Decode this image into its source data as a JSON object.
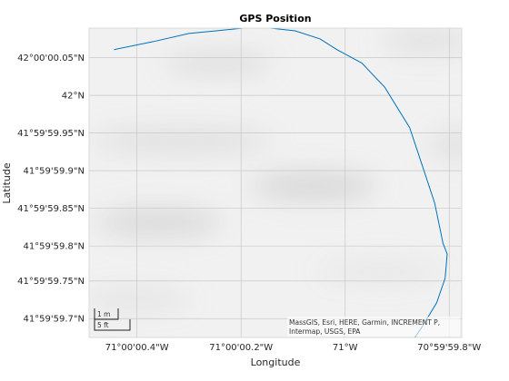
{
  "chart_data": {
    "type": "line",
    "title": "GPS Position",
    "xlabel": "Longitude",
    "ylabel": "Latitude",
    "xlim": [
      -71.000123,
      -70.999944
    ],
    "ylim": [
      41.99991,
      42.000025
    ],
    "x_ticks": [
      {
        "value": -71.0001,
        "label": "71°00'00.4\"W"
      },
      {
        "value": -71.00005,
        "label": "71°00'00.2\"W"
      },
      {
        "value": -71.0,
        "label": "71°W"
      },
      {
        "value": -70.99995,
        "label": "70°59'59.8\"W"
      }
    ],
    "y_ticks": [
      {
        "value": 42.000014,
        "label": "42°00'00.05\"N"
      },
      {
        "value": 42.0,
        "label": "42°N"
      },
      {
        "value": 41.999986,
        "label": "41°59'59.95\"N"
      },
      {
        "value": 41.999972,
        "label": "41°59'59.9\"N"
      },
      {
        "value": 41.999958,
        "label": "41°59'59.85\"N"
      },
      {
        "value": 41.999944,
        "label": "41°59'59.8\"N"
      },
      {
        "value": 41.999931,
        "label": "41°59'59.75\"N"
      },
      {
        "value": 41.999917,
        "label": "41°59'59.7\"N"
      }
    ],
    "grid": true,
    "series": [
      {
        "color": "#0072BD",
        "x": [
          -71.000111,
          -71.000092,
          -71.000075,
          -71.000062,
          -71.000049,
          -71.000036,
          -71.000024,
          -71.000012,
          -71.000004,
          -70.999992,
          -70.999981,
          -70.999969,
          -70.999963,
          -70.999957,
          -70.999953,
          -70.999951,
          -70.999952,
          -70.999956,
          -70.999963,
          -70.99997,
          -70.999979
        ],
        "y": [
          42.000017,
          42.00002,
          42.000023,
          42.000024,
          42.000025,
          42.000025,
          42.000024,
          42.000021,
          42.000017,
          42.000012,
          42.000003,
          41.999988,
          41.999974,
          41.99996,
          41.999945,
          41.999941,
          41.999932,
          41.999923,
          41.999914,
          41.999906,
          41.999898
        ]
      }
    ]
  },
  "scalebar": {
    "metric": "1 m",
    "imperial": "5 ft"
  },
  "attribution": {
    "line1": "MassGIS, Esri, HERE, Garmin, INCREMENT P,",
    "line2": "Intermap, USGS, EPA"
  }
}
